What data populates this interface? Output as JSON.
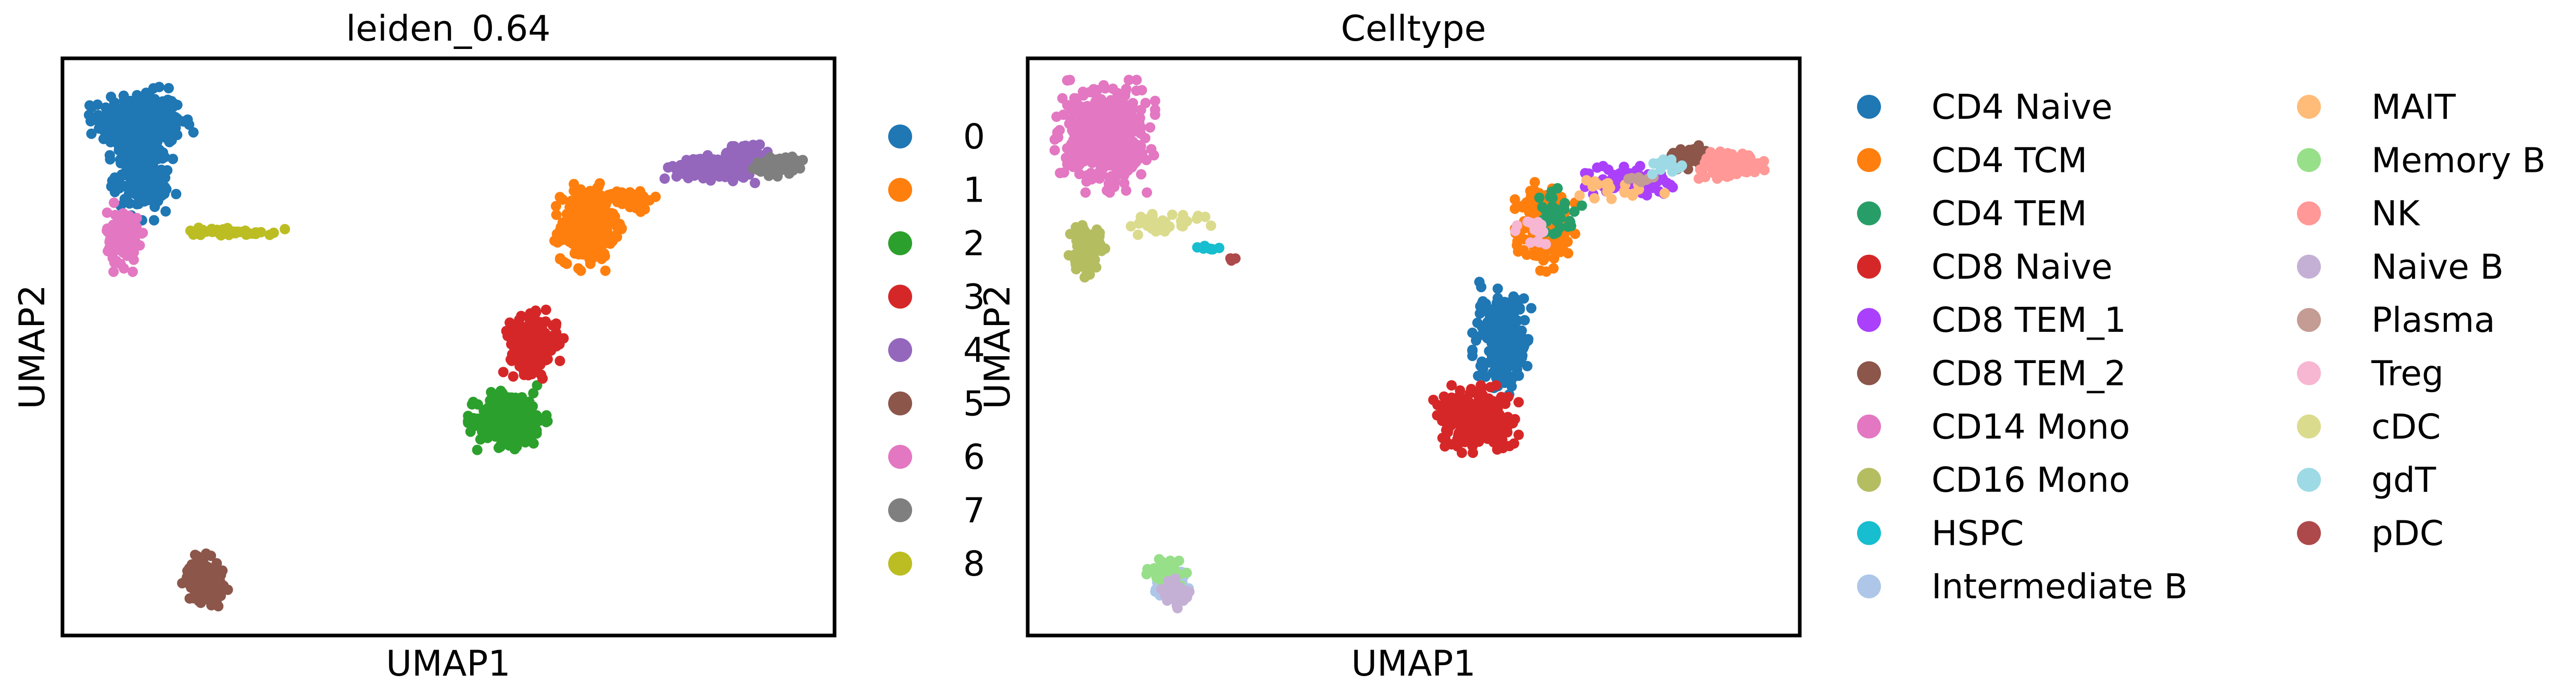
{
  "chart_data": [
    {
      "type": "scatter",
      "title": "leiden_0.64",
      "xlabel": "UMAP1",
      "ylabel": "UMAP2",
      "xlim": [
        0,
        100
      ],
      "ylim": [
        0,
        100
      ],
      "grid": false,
      "legend_position": "right",
      "series": [
        {
          "name": "0",
          "color": "#1f77b4",
          "clusters": [
            {
              "cx": 10.2,
              "cy": 89.0,
              "rx": 5.2,
              "ry": 5.0,
              "n": 340
            },
            {
              "cx": 10.3,
              "cy": 80.0,
              "rx": 3.4,
              "ry": 6.2,
              "n": 200
            }
          ]
        },
        {
          "name": "1",
          "color": "#ff7f0e",
          "clusters": [
            {
              "cx": 68.0,
              "cy": 71.0,
              "rx": 3.4,
              "ry": 6.0,
              "n": 280
            },
            {
              "cx": 73.5,
              "cy": 75.5,
              "rx": 3.0,
              "ry": 1.6,
              "n": 60
            }
          ]
        },
        {
          "name": "2",
          "color": "#2ca02c",
          "clusters": [
            {
              "cx": 58.0,
              "cy": 37.5,
              "rx": 4.2,
              "ry": 4.5,
              "n": 320
            }
          ]
        },
        {
          "name": "3",
          "color": "#d62728",
          "clusters": [
            {
              "cx": 61.0,
              "cy": 50.5,
              "rx": 3.0,
              "ry": 4.6,
              "n": 220
            }
          ]
        },
        {
          "name": "4",
          "color": "#9467bd",
          "clusters": [
            {
              "cx": 84.5,
              "cy": 81.0,
              "rx": 5.0,
              "ry": 2.0,
              "n": 170
            },
            {
              "cx": 88.5,
              "cy": 83.8,
              "rx": 2.2,
              "ry": 1.4,
              "n": 60
            }
          ]
        },
        {
          "name": "5",
          "color": "#8c564b",
          "clusters": [
            {
              "cx": 18.5,
              "cy": 9.5,
              "rx": 2.3,
              "ry": 3.6,
              "n": 150
            }
          ]
        },
        {
          "name": "6",
          "color": "#e377c2",
          "clusters": [
            {
              "cx": 7.8,
              "cy": 69.0,
              "rx": 2.0,
              "ry": 4.6,
              "n": 130
            }
          ]
        },
        {
          "name": "7",
          "color": "#7f7f7f",
          "clusters": [
            {
              "cx": 92.5,
              "cy": 81.5,
              "rx": 2.6,
              "ry": 1.5,
              "n": 90
            }
          ]
        },
        {
          "name": "8",
          "color": "#bcbd22",
          "clusters": [
            {
              "cx": 21.5,
              "cy": 70.0,
              "rx": 6.0,
              "ry": 0.7,
              "n": 40
            }
          ]
        }
      ]
    },
    {
      "type": "scatter",
      "title": "Celltype",
      "xlabel": "UMAP1",
      "ylabel": "UMAP2",
      "xlim": [
        0,
        100
      ],
      "ylim": [
        0,
        100
      ],
      "grid": false,
      "legend_position": "right",
      "legend_columns": 2,
      "series": [
        {
          "name": "CD4 Naive",
          "color": "#1f77b4",
          "clusters": [
            {
              "cx": 61.5,
              "cy": 51.5,
              "rx": 3.0,
              "ry": 7.5,
              "n": 260
            }
          ]
        },
        {
          "name": "CD4 TCM",
          "color": "#ff7f0e",
          "clusters": [
            {
              "cx": 67.0,
              "cy": 71.5,
              "rx": 3.0,
              "ry": 6.5,
              "n": 240
            }
          ]
        },
        {
          "name": "CD4 TEM",
          "color": "#279e68",
          "clusters": [
            {
              "cx": 68.5,
              "cy": 73.0,
              "rx": 2.6,
              "ry": 3.5,
              "n": 35
            }
          ]
        },
        {
          "name": "CD8 Naive",
          "color": "#d62728",
          "clusters": [
            {
              "cx": 58.0,
              "cy": 37.5,
              "rx": 4.3,
              "ry": 4.5,
              "n": 330
            }
          ]
        },
        {
          "name": "CD8 TEM_1",
          "color": "#aa40fc",
          "clusters": [
            {
              "cx": 78.0,
              "cy": 78.5,
              "rx": 5.0,
              "ry": 2.3,
              "n": 70
            }
          ]
        },
        {
          "name": "CD8 TEM_2",
          "color": "#8c564b",
          "clusters": [
            {
              "cx": 85.5,
              "cy": 83.0,
              "rx": 2.4,
              "ry": 1.7,
              "n": 45
            }
          ]
        },
        {
          "name": "CD14 Mono",
          "color": "#e377c2",
          "clusters": [
            {
              "cx": 10.0,
              "cy": 86.5,
              "rx": 5.0,
              "ry": 7.5,
              "n": 520
            }
          ]
        },
        {
          "name": "CD16 Mono",
          "color": "#b5bd61",
          "clusters": [
            {
              "cx": 7.8,
              "cy": 67.0,
              "rx": 1.9,
              "ry": 3.8,
              "n": 110
            }
          ]
        },
        {
          "name": "HSPC",
          "color": "#17becf",
          "clusters": [
            {
              "cx": 23.5,
              "cy": 67.0,
              "rx": 1.4,
              "ry": 0.5,
              "n": 8
            }
          ]
        },
        {
          "name": "Intermediate B",
          "color": "#aec7e8",
          "clusters": [
            {
              "cx": 18.5,
              "cy": 8.5,
              "rx": 2.0,
              "ry": 2.6,
              "n": 80
            }
          ]
        },
        {
          "name": "MAIT",
          "color": "#ffbb78",
          "clusters": [
            {
              "cx": 76.0,
              "cy": 77.5,
              "rx": 5.0,
              "ry": 1.8,
              "n": 20
            }
          ]
        },
        {
          "name": "Memory B",
          "color": "#98df8a",
          "clusters": [
            {
              "cx": 18.0,
              "cy": 11.0,
              "rx": 2.0,
              "ry": 1.8,
              "n": 60
            }
          ]
        },
        {
          "name": "NK",
          "color": "#ff9896",
          "clusters": [
            {
              "cx": 91.0,
              "cy": 81.5,
              "rx": 3.4,
              "ry": 1.8,
              "n": 120
            }
          ]
        },
        {
          "name": "Naive B",
          "color": "#c5b0d5",
          "clusters": [
            {
              "cx": 19.0,
              "cy": 7.5,
              "rx": 1.8,
              "ry": 2.2,
              "n": 40
            }
          ]
        },
        {
          "name": "Plasma",
          "color": "#c49c94",
          "clusters": [
            {
              "cx": 79.0,
              "cy": 79.0,
              "rx": 2.0,
              "ry": 1.0,
              "n": 8
            }
          ]
        },
        {
          "name": "Treg",
          "color": "#f7b6d2",
          "clusters": [
            {
              "cx": 65.5,
              "cy": 70.0,
              "rx": 2.0,
              "ry": 3.0,
              "n": 15
            }
          ]
        },
        {
          "name": "cDC",
          "color": "#dbdb8d",
          "clusters": [
            {
              "cx": 17.5,
              "cy": 71.5,
              "rx": 4.8,
              "ry": 1.6,
              "n": 35
            }
          ]
        },
        {
          "name": "gdT",
          "color": "#9edae5",
          "clusters": [
            {
              "cx": 83.0,
              "cy": 81.5,
              "rx": 2.5,
              "ry": 1.2,
              "n": 15
            }
          ]
        },
        {
          "name": "pDC",
          "color": "#ad494a",
          "clusters": [
            {
              "cx": 26.5,
              "cy": 65.0,
              "rx": 0.7,
              "ry": 0.6,
              "n": 4
            }
          ]
        }
      ]
    }
  ]
}
